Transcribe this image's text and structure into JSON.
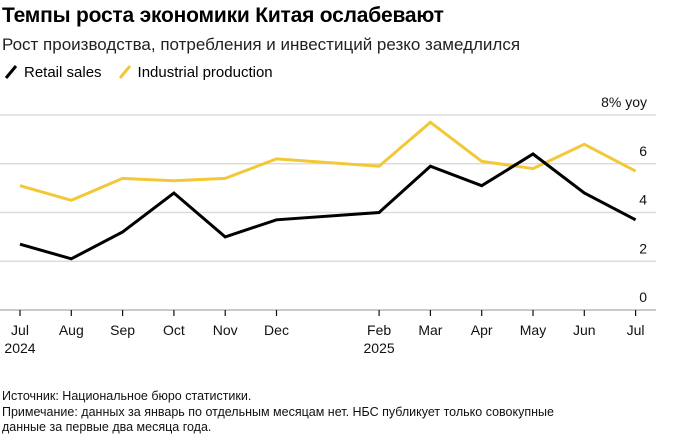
{
  "header": {
    "title": "Темпы роста экономики Китая ослабевают",
    "subtitle": "Рост производства, потребления и инвестиций резко замедлился"
  },
  "legend": {
    "items": [
      {
        "label": "Retail sales",
        "color": "#000000",
        "icon": "slash-line-icon"
      },
      {
        "label": "Industrial production",
        "color": "#f2c836",
        "icon": "slash-line-icon"
      }
    ]
  },
  "chart_data": {
    "type": "line",
    "title": "Темпы роста экономики Китая ослабевают",
    "subtitle": "Рост производства, потребления и инвестиций резко замедлился",
    "x": [
      "2024-07",
      "2024-08",
      "2024-09",
      "2024-10",
      "2024-11",
      "2024-12",
      "2025-02",
      "2025-03",
      "2025-04",
      "2025-05",
      "2025-06",
      "2025-07"
    ],
    "x_tick_labels": [
      {
        "x": "2024-07",
        "label": "Jul",
        "sublabel": "2024"
      },
      {
        "x": "2024-08",
        "label": "Aug"
      },
      {
        "x": "2024-09",
        "label": "Sep"
      },
      {
        "x": "2024-10",
        "label": "Oct"
      },
      {
        "x": "2024-11",
        "label": "Nov"
      },
      {
        "x": "2024-12",
        "label": "Dec"
      },
      {
        "x": "2025-02",
        "label": "Feb",
        "sublabel": "2025"
      },
      {
        "x": "2025-03",
        "label": "Mar"
      },
      {
        "x": "2025-04",
        "label": "Apr"
      },
      {
        "x": "2025-05",
        "label": "May"
      },
      {
        "x": "2025-06",
        "label": "Jun"
      },
      {
        "x": "2025-07",
        "label": "Jul"
      }
    ],
    "series": [
      {
        "name": "Retail sales",
        "color": "#000000",
        "values": [
          2.7,
          2.1,
          3.2,
          4.8,
          3.0,
          3.7,
          4.0,
          5.9,
          5.1,
          6.4,
          4.8,
          3.7
        ]
      },
      {
        "name": "Industrial production",
        "color": "#f2c836",
        "values": [
          5.1,
          4.5,
          5.4,
          5.3,
          5.4,
          6.2,
          5.9,
          7.7,
          6.1,
          5.8,
          6.8,
          5.7
        ]
      }
    ],
    "y_unit_label": "8% yoy",
    "y_ticks": [
      {
        "value": 8,
        "label": "8% yoy"
      },
      {
        "value": 6,
        "label": "6"
      },
      {
        "value": 4,
        "label": "4"
      },
      {
        "value": 2,
        "label": "2"
      },
      {
        "value": 0,
        "label": "0"
      }
    ],
    "ylim": [
      0,
      8
    ],
    "grid": true,
    "legend_position": "top-left"
  },
  "footer": {
    "source": "Источник: Национальное бюро статистики.",
    "note_line1": "Примечание: данных за январь по отдельным месяцам нет. НБС публикует только совокупные",
    "note_line2": "данные за первые два месяца года."
  }
}
